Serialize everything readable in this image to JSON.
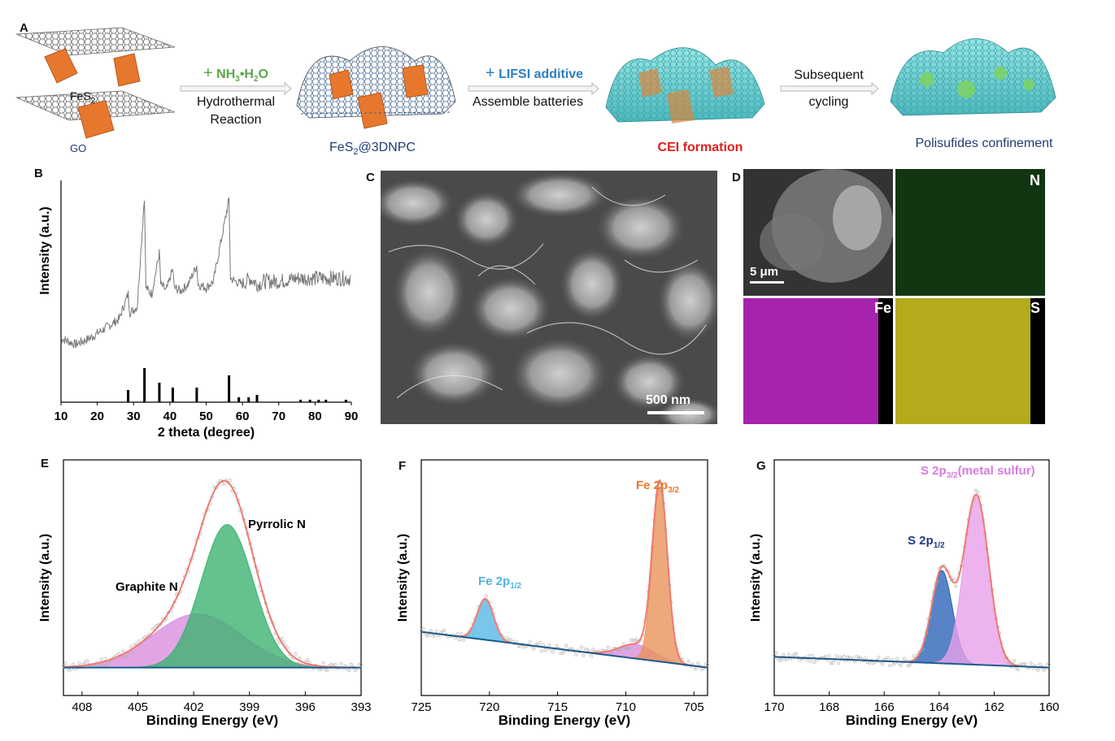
{
  "panels": {
    "A": {
      "letter": "A",
      "go_label": "GO",
      "fes2_label": "FeS",
      "fes2_sub": "2",
      "step1": {
        "plus": "+",
        "reagent_main": "NH",
        "reagent_sub1": "3",
        "reagent_mid": "•H",
        "reagent_sub2": "2",
        "reagent_end": "O",
        "line1": "Hydrothermal",
        "line2": "Reaction"
      },
      "product1_main": "FeS",
      "product1_sub": "2",
      "product1_end": "@3DNPC",
      "step2": {
        "plus": "+",
        "reagent": "LIFSI additive",
        "line1": "Assemble batteries"
      },
      "product2": "CEI formation",
      "step3": {
        "line1": "Subsequent",
        "line2": "cycling"
      },
      "product3": "Polisufides confinement",
      "colors": {
        "green": "#5aa64a",
        "blue": "#2a7fc1",
        "red": "#e0201b",
        "navy": "#1f3b73",
        "orange": "#e8772e",
        "cyan": "#4fc6c6"
      }
    },
    "B": {
      "letter": "B"
    },
    "C": {
      "letter": "C",
      "scalebar": "500 nm"
    },
    "D": {
      "letter": "D",
      "scalebar": "5 μm",
      "maps": [
        "N",
        "Fe",
        "S"
      ],
      "colors": {
        "N": "#1f5a1f",
        "Fe": "#b023b8",
        "S": "#c8c21e"
      }
    },
    "E": {
      "letter": "E"
    },
    "F": {
      "letter": "F"
    },
    "G": {
      "letter": "G"
    }
  },
  "chart_data": [
    {
      "panel": "B",
      "type": "line",
      "xlabel": "2 theta (degree)",
      "ylabel": "Intensity (a.u.)",
      "xlim": [
        10,
        90
      ],
      "xticks": [
        10,
        20,
        30,
        40,
        50,
        60,
        70,
        80,
        90
      ],
      "series": [
        {
          "x": [
            10,
            14,
            18,
            22,
            26,
            28.5,
            29,
            31,
            33.0,
            33.4,
            35,
            37.1,
            37.5,
            39,
            40.8,
            41.2,
            43,
            45,
            47.4,
            47.8,
            50,
            52,
            56.3,
            56.7,
            58,
            60,
            62,
            64.3,
            66,
            70,
            75,
            80,
            85,
            90
          ],
          "y": [
            10,
            8,
            10,
            13,
            16,
            24,
            18,
            20,
            55,
            26,
            24,
            37,
            27,
            25,
            32,
            26,
            25,
            27,
            33,
            27,
            26,
            28,
            54,
            29,
            28,
            27,
            29,
            27,
            28,
            28,
            29,
            29,
            29,
            29
          ]
        }
      ],
      "reference_lines": {
        "x": [
          28.5,
          33.0,
          37.1,
          40.8,
          47.4,
          56.3,
          59,
          61.7,
          64,
          76,
          78.6,
          81,
          83,
          88.5
        ],
        "y": [
          5,
          14,
          8,
          6,
          6,
          11,
          2,
          2,
          3,
          1,
          1,
          1,
          1,
          1
        ]
      }
    },
    {
      "panel": "E",
      "type": "area",
      "xlabel": "Binding Energy (eV)",
      "ylabel": "Intensity (a.u.)",
      "xlim": [
        409,
        393
      ],
      "xticks": [
        408,
        405,
        402,
        399,
        396,
        393
      ],
      "peaks": [
        {
          "name": "Pyrrolic N",
          "center": 400.2,
          "height": 0.8,
          "width": 1.4,
          "color": "#3cb371"
        },
        {
          "name": "Graphite N",
          "center": 401.8,
          "height": 0.3,
          "width": 2.4,
          "color": "#d98ee0"
        }
      ],
      "baseline": 0.02,
      "envelope_color": "#f07a6e"
    },
    {
      "panel": "F",
      "type": "area",
      "xlabel": "Binding Energy (eV)",
      "ylabel": "Intensity (a.u.)",
      "xlim": [
        725,
        704
      ],
      "xticks": [
        725,
        720,
        715,
        710,
        705
      ],
      "peaks": [
        {
          "name": "Fe 2p3/2",
          "center": 707.5,
          "height": 0.98,
          "width": 0.55,
          "color": "#e8945a"
        },
        {
          "name": "Fe 2p1/2",
          "center": 720.3,
          "height": 0.23,
          "width": 0.6,
          "color": "#56b8e6"
        },
        {
          "name": "satellite",
          "center": 709.2,
          "height": 0.08,
          "width": 1.3,
          "color": "#d98ee0"
        }
      ],
      "baseline_start": 0.22,
      "baseline_end": 0.02,
      "envelope_color": "#f07a6e"
    },
    {
      "panel": "G",
      "type": "area",
      "xlabel": "Binding Energy (eV)",
      "ylabel": "Intensity (a.u.)",
      "xlim": [
        170,
        160
      ],
      "xticks": [
        170,
        168,
        166,
        164,
        162,
        160
      ],
      "peaks": [
        {
          "name": "S 2p3/2(metal sulfur)",
          "center": 162.65,
          "height": 0.95,
          "width": 0.45,
          "color": "#e8a0ea"
        },
        {
          "name": "S 2p1/2",
          "center": 163.9,
          "height": 0.52,
          "width": 0.38,
          "color": "#2e64b8"
        }
      ],
      "baseline_start": 0.08,
      "baseline_end": 0.02,
      "envelope_color": "#f07a6e"
    }
  ],
  "annotations": {
    "E": {
      "pyrrolic": "Pyrrolic N",
      "graphite": "Graphite N"
    },
    "F": {
      "p32_main": "Fe 2p",
      "p32_sub": "3/2",
      "p12_main": "Fe 2p",
      "p12_sub": "1/2"
    },
    "G": {
      "p32_main": "S 2p",
      "p32_sub": "3/2",
      "p32_end": "(metal sulfur)",
      "p12_main": "S 2p",
      "p12_sub": "1/2"
    }
  }
}
